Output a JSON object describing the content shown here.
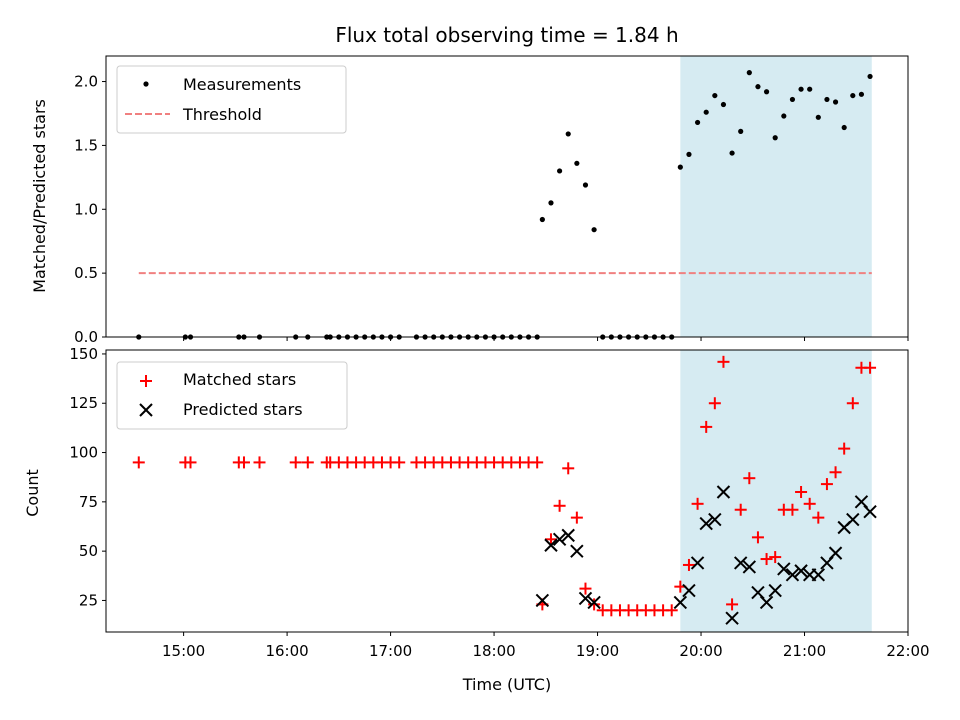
{
  "figure": {
    "title": "Flux total observing time = 1.84 h",
    "xlabel": "Time (UTC)"
  },
  "colors": {
    "measurement": "#000000",
    "threshold": "#f08080",
    "matched": "#ff0000",
    "predicted": "#000000",
    "highlight": "#add8e6"
  },
  "chart_data": [
    {
      "type": "scatter",
      "panel": "top",
      "ylabel": "Matched/Predicted stars",
      "xlim": [
        "14:15",
        "22:00"
      ],
      "ylim": [
        0,
        2.2
      ],
      "xticks": [
        "15:00",
        "16:00",
        "17:00",
        "18:00",
        "19:00",
        "20:00",
        "21:00",
        "22:00"
      ],
      "yticks": [
        "0.0",
        "0.5",
        "1.0",
        "1.5",
        "2.0"
      ],
      "highlight_span": [
        "19:48",
        "21:39"
      ],
      "legend": {
        "position": "upper left",
        "measurements": "Measurements",
        "threshold": "Threshold"
      },
      "threshold": {
        "name": "Threshold",
        "y": 0.5,
        "x_range": [
          "14:34",
          "21:39"
        ]
      },
      "measurements": {
        "name": "Measurements",
        "x": [
          "14:34",
          "15:01",
          "15:04",
          "15:32",
          "15:35",
          "15:44",
          "16:05",
          "16:12",
          "16:23",
          "16:25",
          "16:30",
          "16:35",
          "16:40",
          "16:45",
          "16:50",
          "16:55",
          "17:00",
          "17:05",
          "17:15",
          "17:20",
          "17:25",
          "17:30",
          "17:35",
          "17:40",
          "17:45",
          "17:50",
          "17:55",
          "18:00",
          "18:05",
          "18:10",
          "18:15",
          "18:20",
          "18:25",
          "18:28",
          "18:33",
          "18:38",
          "18:43",
          "18:48",
          "18:53",
          "18:58",
          "19:03",
          "19:08",
          "19:13",
          "19:18",
          "19:23",
          "19:28",
          "19:33",
          "19:38",
          "19:43",
          "19:48",
          "19:53",
          "19:58",
          "20:03",
          "20:08",
          "20:13",
          "20:18",
          "20:23",
          "20:28",
          "20:33",
          "20:38",
          "20:43",
          "20:48",
          "20:53",
          "20:58",
          "21:03",
          "21:08",
          "21:13",
          "21:18",
          "21:23",
          "21:28",
          "21:33",
          "21:38"
        ],
        "y": [
          0,
          0,
          0,
          0,
          0,
          0,
          0,
          0,
          0,
          0,
          0,
          0,
          0,
          0,
          0,
          0,
          0,
          0,
          0,
          0,
          0,
          0,
          0,
          0,
          0,
          0,
          0,
          0,
          0,
          0,
          0,
          0,
          0,
          0.92,
          1.05,
          1.3,
          1.59,
          1.36,
          1.19,
          0.84,
          0,
          0,
          0,
          0,
          0,
          0,
          0,
          0,
          0,
          1.33,
          1.43,
          1.68,
          1.76,
          1.89,
          1.82,
          1.44,
          1.61,
          2.07,
          1.96,
          1.92,
          1.56,
          1.73,
          1.86,
          1.94,
          1.94,
          1.72,
          1.86,
          1.84,
          1.64,
          1.89,
          1.9,
          2.04
        ]
      }
    },
    {
      "type": "scatter",
      "panel": "bottom",
      "ylabel": "Count",
      "xlim": [
        "14:15",
        "22:00"
      ],
      "ylim": [
        9,
        152
      ],
      "xticks": [
        "15:00",
        "16:00",
        "17:00",
        "18:00",
        "19:00",
        "20:00",
        "21:00",
        "22:00"
      ],
      "yticks": [
        "25",
        "50",
        "75",
        "100",
        "125",
        "150"
      ],
      "highlight_span": [
        "19:48",
        "21:39"
      ],
      "legend": {
        "position": "upper left"
      },
      "series": [
        {
          "name": "Matched stars",
          "marker": "+",
          "x": [
            "14:34",
            "15:01",
            "15:04",
            "15:32",
            "15:35",
            "15:44",
            "16:05",
            "16:12",
            "16:23",
            "16:25",
            "16:30",
            "16:35",
            "16:40",
            "16:45",
            "16:50",
            "16:55",
            "17:00",
            "17:05",
            "17:15",
            "17:20",
            "17:25",
            "17:30",
            "17:35",
            "17:40",
            "17:45",
            "17:50",
            "17:55",
            "18:00",
            "18:05",
            "18:10",
            "18:15",
            "18:20",
            "18:25",
            "18:28",
            "18:33",
            "18:38",
            "18:43",
            "18:48",
            "18:53",
            "18:58",
            "19:03",
            "19:08",
            "19:13",
            "19:18",
            "19:23",
            "19:28",
            "19:33",
            "19:38",
            "19:43",
            "19:48",
            "19:53",
            "19:58",
            "20:03",
            "20:08",
            "20:13",
            "20:18",
            "20:23",
            "20:28",
            "20:33",
            "20:38",
            "20:43",
            "20:48",
            "20:53",
            "20:58",
            "21:03",
            "21:08",
            "21:13",
            "21:18",
            "21:23",
            "21:28",
            "21:33",
            "21:38"
          ],
          "y": [
            95,
            95,
            95,
            95,
            95,
            95,
            95,
            95,
            95,
            95,
            95,
            95,
            95,
            95,
            95,
            95,
            95,
            95,
            95,
            95,
            95,
            95,
            95,
            95,
            95,
            95,
            95,
            95,
            95,
            95,
            95,
            95,
            95,
            23,
            56,
            73,
            92,
            67,
            31,
            23,
            20,
            20,
            20,
            20,
            20,
            20,
            20,
            20,
            20,
            32,
            43,
            74,
            113,
            125,
            146,
            23,
            71,
            87,
            57,
            46,
            47,
            71,
            71,
            80,
            74,
            67,
            84,
            90,
            102,
            125,
            143,
            143
          ]
        },
        {
          "name": "Predicted stars",
          "marker": "x",
          "x": [
            "18:28",
            "18:33",
            "18:38",
            "18:43",
            "18:48",
            "18:53",
            "18:58",
            "19:48",
            "19:53",
            "19:58",
            "20:03",
            "20:08",
            "20:13",
            "20:18",
            "20:23",
            "20:28",
            "20:33",
            "20:38",
            "20:43",
            "20:48",
            "20:53",
            "20:58",
            "21:03",
            "21:08",
            "21:13",
            "21:18",
            "21:23",
            "21:28",
            "21:33",
            "21:38"
          ],
          "y": [
            25,
            53,
            56,
            58,
            50,
            26,
            24,
            24,
            30,
            44,
            64,
            66,
            80,
            16,
            44,
            42,
            29,
            24,
            30,
            41,
            38,
            40,
            38,
            38,
            44,
            49,
            62,
            66,
            75,
            70
          ]
        }
      ]
    }
  ]
}
